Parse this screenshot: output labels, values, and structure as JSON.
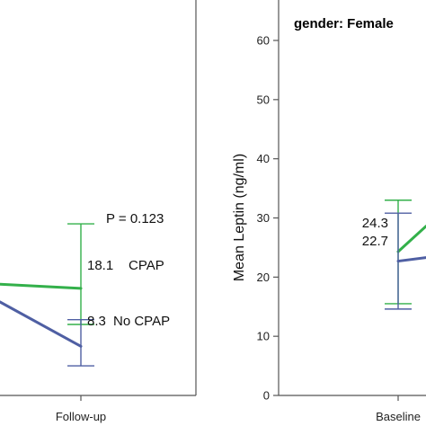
{
  "chart_data": [
    {
      "type": "line",
      "panel": "left (cropped)",
      "categories": [
        "Baseline",
        "Follow-up"
      ],
      "visible_x_tick_labels": [
        "Follow-up"
      ],
      "annotation": "P = 0.123",
      "ylim": [
        0,
        60
      ],
      "series": [
        {
          "name": "CPAP",
          "color": "#33b04a",
          "values": [
            null,
            18.1
          ],
          "value_labels": [
            "",
            "18.1"
          ],
          "ci": [
            [
              null,
              null
            ],
            [
              12.0,
              29.0
            ]
          ],
          "left_edge_value": 18.8
        },
        {
          "name": "No CPAP",
          "color": "#4f5fa3",
          "values": [
            null,
            8.3
          ],
          "value_labels": [
            "",
            "8.3"
          ],
          "ci": [
            [
              null,
              null
            ],
            [
              5.0,
              12.8
            ]
          ],
          "left_edge_value": 15.8
        }
      ]
    },
    {
      "type": "line",
      "panel": "right (cropped)",
      "title": "gender: Female",
      "ylabel": "Mean Leptin (ng/ml)",
      "ylim": [
        0,
        60
      ],
      "yticks": [
        0,
        10,
        20,
        30,
        40,
        50,
        60
      ],
      "categories": [
        "Baseline",
        "Follow-up"
      ],
      "visible_x_tick_labels": [
        "Baseline"
      ],
      "series": [
        {
          "name": "CPAP",
          "color": "#33b04a",
          "values": [
            24.3,
            null
          ],
          "value_labels": [
            "24.3",
            ""
          ],
          "ci": [
            [
              15.5,
              33.0
            ],
            [
              null,
              null
            ]
          ],
          "right_edge_value": 28.6
        },
        {
          "name": "No CPAP",
          "color": "#4f5fa3",
          "values": [
            22.7,
            null
          ],
          "value_labels": [
            "22.7",
            ""
          ],
          "ci": [
            [
              14.6,
              30.8
            ],
            [
              null,
              null
            ]
          ],
          "right_edge_value": 23.3
        }
      ]
    }
  ]
}
